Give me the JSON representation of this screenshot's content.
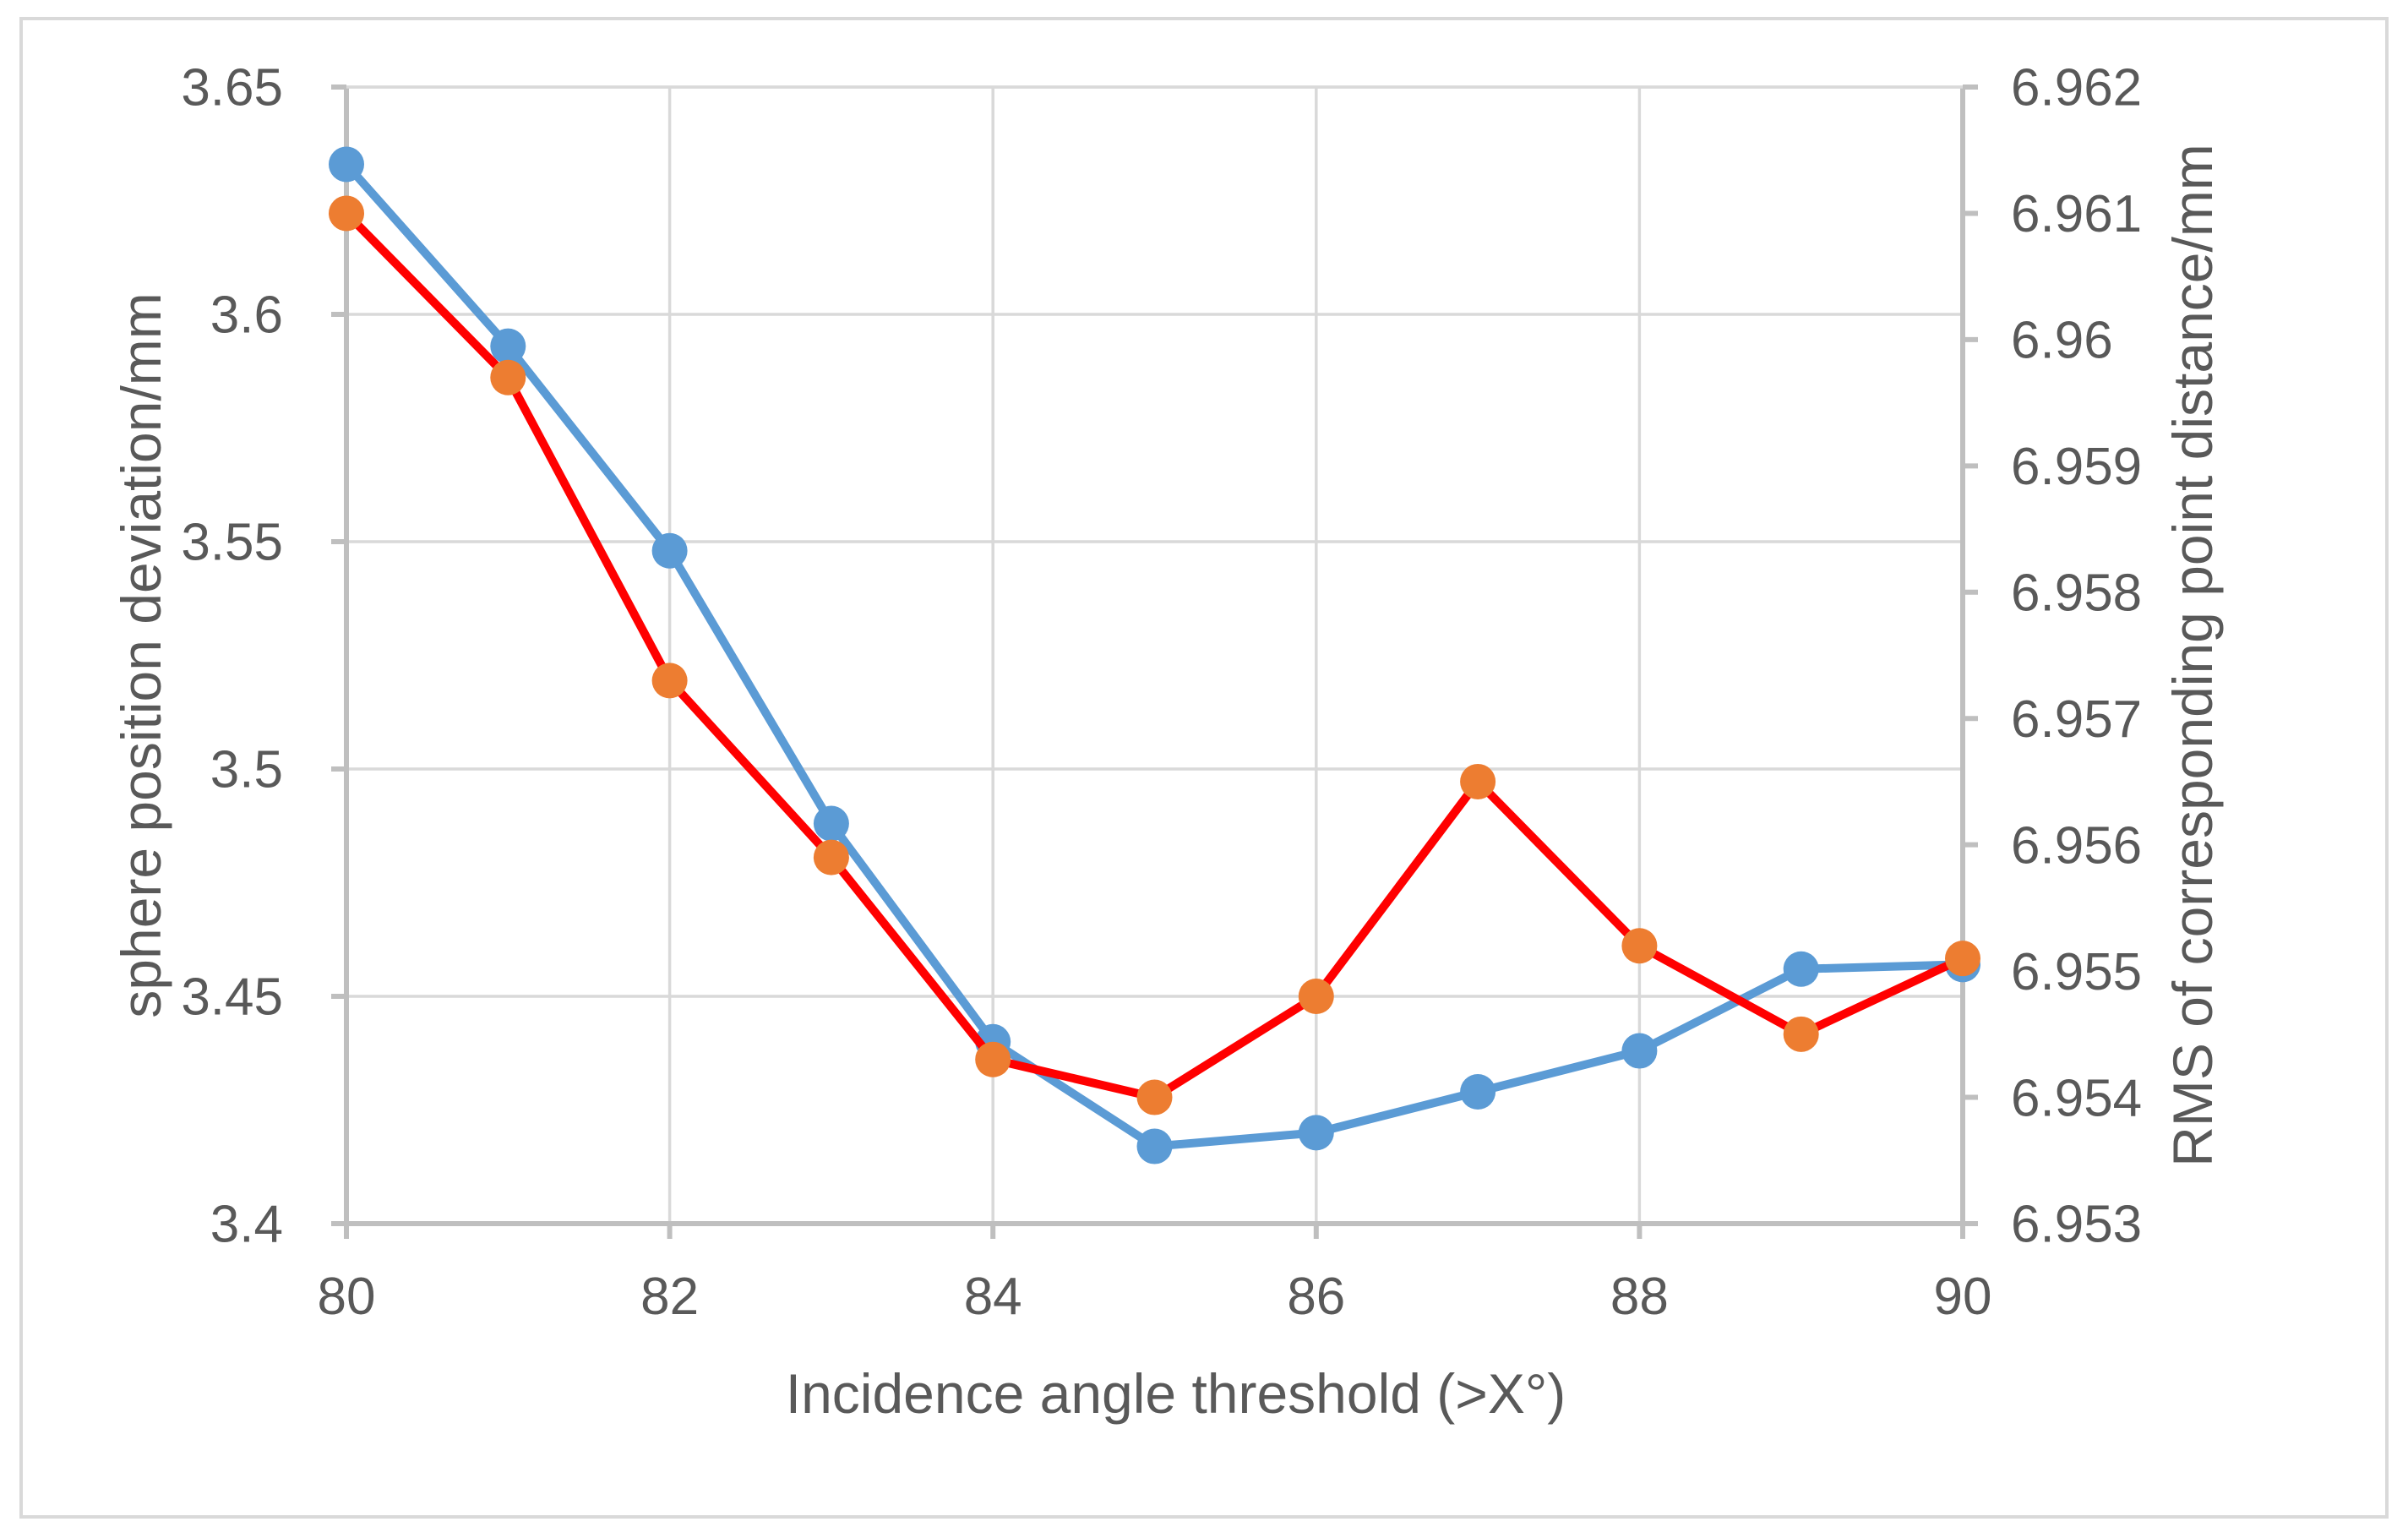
{
  "figure": {
    "frame_color": "#d9d9d9",
    "background": "#ffffff"
  },
  "chart_data": {
    "type": "line",
    "title": "",
    "xlabel": "Incidence angle threshold (>X°)",
    "x": [
      80,
      81,
      82,
      83,
      84,
      85,
      86,
      87,
      88,
      89,
      90
    ],
    "x_ticks": [
      "80",
      "82",
      "84",
      "86",
      "88",
      "90"
    ],
    "xlim": [
      80,
      90
    ],
    "grid": true,
    "legend": "none",
    "left_axis": {
      "label": "sphere position deviation/mm",
      "min": 3.4,
      "max": 3.65,
      "tick_step": 0.05,
      "ticks": [
        "3.4",
        "3.45",
        "3.5",
        "3.55",
        "3.6",
        "3.65"
      ]
    },
    "right_axis": {
      "label": "RMS of corresponding point distance/mm",
      "min": 6.953,
      "max": 6.962,
      "tick_step": 0.001,
      "ticks": [
        "6.953",
        "6.954",
        "6.955",
        "6.956",
        "6.957",
        "6.958",
        "6.959",
        "6.96",
        "6.961",
        "6.962"
      ]
    },
    "series": [
      {
        "name": "sphere position deviation",
        "axis": "left",
        "line_color": "#5b9bd5",
        "marker_color": "#5b9bd5",
        "values": [
          3.633,
          3.593,
          3.548,
          3.488,
          3.44,
          3.417,
          3.42,
          3.429,
          3.438,
          3.456,
          3.457
        ]
      },
      {
        "name": "RMS of corresponding point distance",
        "axis": "right",
        "line_color": "#ff0000",
        "marker_color": "#ed7d31",
        "values": [
          6.961,
          6.9597,
          6.9573,
          6.9559,
          6.9543,
          6.954,
          6.9548,
          6.9565,
          6.9552,
          6.9545,
          6.9551
        ]
      }
    ],
    "colors": {
      "grid": "#d9d9d9",
      "axis": "#bfbfbf",
      "text": "#595959"
    }
  }
}
